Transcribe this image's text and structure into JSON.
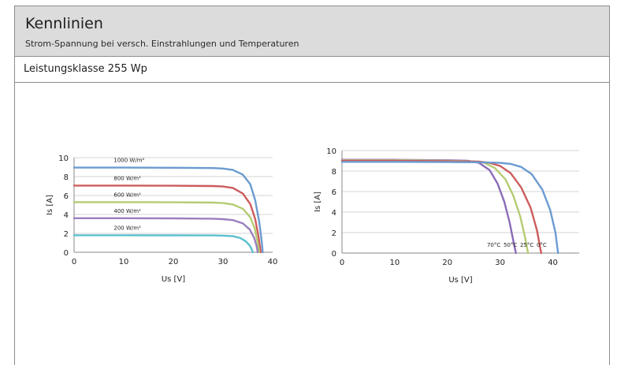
{
  "header": {
    "title": "Kennlinien",
    "subtitle": "Strom-Spannung bei versch. Einstrahlungen und Temperaturen"
  },
  "section": {
    "label": "Leistungsklasse 255 Wp"
  },
  "chart_data": [
    {
      "type": "line",
      "title": "",
      "xlabel": "Us [V]",
      "ylabel": "Is [A]",
      "xlim": [
        0,
        40
      ],
      "ylim": [
        0,
        10
      ],
      "xticks": [
        0,
        10,
        20,
        30,
        40
      ],
      "yticks": [
        0,
        2,
        4,
        6,
        8,
        10
      ],
      "grid": true,
      "label_position": "above-curve",
      "series": [
        {
          "name": "1000 W/m²",
          "color": "#6b9bd1",
          "x": [
            0,
            10,
            20,
            28,
            30,
            32,
            34,
            35.5,
            36.5,
            37.3,
            37.8,
            38
          ],
          "y": [
            8.95,
            8.95,
            8.93,
            8.9,
            8.85,
            8.7,
            8.2,
            7.2,
            5.5,
            3.2,
            1.2,
            0
          ]
        },
        {
          "name": "800 W/m²",
          "color": "#cd5c5c",
          "x": [
            0,
            10,
            20,
            28,
            30,
            32,
            34,
            35.5,
            36.5,
            37.2,
            37.6
          ],
          "y": [
            7.05,
            7.05,
            7.03,
            7.0,
            6.95,
            6.8,
            6.2,
            5.1,
            3.5,
            1.5,
            0
          ]
        },
        {
          "name": "600 W/m²",
          "color": "#b5cc72",
          "x": [
            0,
            10,
            20,
            28,
            30,
            32,
            34,
            35.5,
            36.4,
            37.0,
            37.3
          ],
          "y": [
            5.3,
            5.3,
            5.28,
            5.25,
            5.2,
            5.05,
            4.6,
            3.7,
            2.5,
            1.0,
            0
          ]
        },
        {
          "name": "400 W/m²",
          "color": "#9b7fbf",
          "x": [
            0,
            10,
            20,
            28,
            30,
            32,
            34,
            35.4,
            36.3,
            36.8,
            37.0
          ],
          "y": [
            3.6,
            3.6,
            3.58,
            3.55,
            3.5,
            3.4,
            3.05,
            2.4,
            1.5,
            0.6,
            0
          ]
        },
        {
          "name": "200 W/m²",
          "color": "#5bbfcf",
          "x": [
            0,
            10,
            20,
            28,
            30,
            32,
            33.5,
            34.6,
            35.4,
            35.8,
            36.0
          ],
          "y": [
            1.8,
            1.8,
            1.79,
            1.78,
            1.76,
            1.7,
            1.5,
            1.15,
            0.7,
            0.3,
            0
          ]
        }
      ]
    },
    {
      "type": "line",
      "title": "",
      "xlabel": "Us [V]",
      "ylabel": "Is [A]",
      "xlim": [
        0,
        45
      ],
      "ylim": [
        0,
        10
      ],
      "xticks": [
        0,
        10,
        20,
        30,
        40
      ],
      "yticks": [
        0,
        2,
        4,
        6,
        8,
        10
      ],
      "grid": true,
      "label_position": "bottom-right",
      "series": [
        {
          "name": "70°C",
          "color": "#8b6bb8",
          "x": [
            0,
            10,
            20,
            24,
            26,
            28,
            29.5,
            30.8,
            31.8,
            32.5,
            33
          ],
          "y": [
            9.1,
            9.1,
            9.05,
            9.0,
            8.8,
            8.1,
            6.8,
            5.0,
            3.0,
            1.2,
            0
          ]
        },
        {
          "name": "50°C",
          "color": "#b5cc72",
          "x": [
            0,
            10,
            20,
            25,
            27,
            29,
            31,
            32.5,
            33.8,
            34.7,
            35.3
          ],
          "y": [
            9.05,
            9.05,
            9.0,
            8.95,
            8.8,
            8.3,
            7.2,
            5.6,
            3.6,
            1.6,
            0
          ]
        },
        {
          "name": "25°C",
          "color": "#cd5c5c",
          "x": [
            0,
            10,
            20,
            26,
            28,
            30,
            32,
            34,
            35.8,
            37.0,
            37.8
          ],
          "y": [
            9.0,
            9.0,
            8.97,
            8.92,
            8.8,
            8.5,
            7.8,
            6.4,
            4.4,
            2.2,
            0
          ]
        },
        {
          "name": "0°C",
          "color": "#6b9bd1",
          "x": [
            0,
            10,
            20,
            26,
            30,
            32,
            34,
            36,
            38,
            39.5,
            40.5,
            41
          ],
          "y": [
            8.9,
            8.9,
            8.88,
            8.86,
            8.8,
            8.7,
            8.4,
            7.7,
            6.2,
            4.2,
            2.0,
            0
          ]
        }
      ]
    }
  ]
}
